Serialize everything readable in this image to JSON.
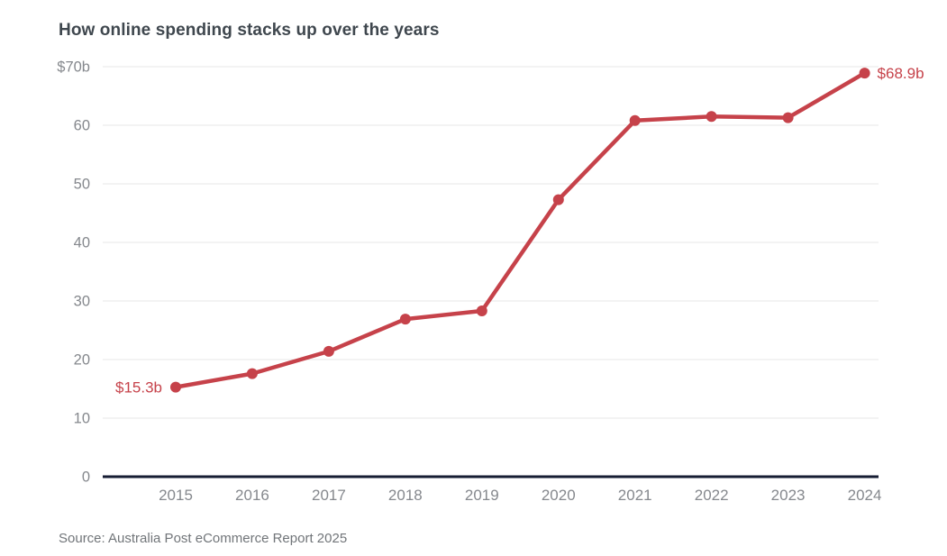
{
  "header": {
    "title": "How online spending stacks up over the years"
  },
  "footer": {
    "source": "Source: Australia Post eCommerce Report 2025"
  },
  "chart_data": {
    "type": "line",
    "title": "How online spending stacks up over the years",
    "categories": [
      "2015",
      "2016",
      "2017",
      "2018",
      "2019",
      "2020",
      "2021",
      "2022",
      "2023",
      "2024"
    ],
    "series": [
      {
        "name": "Online spending ($b)",
        "values": [
          15.3,
          17.6,
          21.4,
          26.9,
          28.3,
          47.3,
          60.8,
          61.5,
          61.3,
          68.9
        ]
      }
    ],
    "xlabel": "",
    "ylabel": "",
    "ylim": [
      0,
      70
    ],
    "ytick_interval": 10,
    "ytick_labels": [
      "0",
      "10",
      "20",
      "30",
      "40",
      "50",
      "60",
      "$70b"
    ],
    "grid": "horizontal-only",
    "legend": "none",
    "annotations": [
      {
        "text": "$15.3b",
        "point_index": 0,
        "side": "left"
      },
      {
        "text": "$68.9b",
        "point_index": 9,
        "side": "right"
      }
    ],
    "colors": {
      "line": "#c6424a",
      "marker": "#c6424a",
      "annotation": "#c6424a",
      "grid": "#e7e7e7",
      "zero_axis": "#161d33",
      "tick_label": "#85888d",
      "title": "#3f474e",
      "source": "#717579",
      "background": "#ffffff"
    }
  }
}
